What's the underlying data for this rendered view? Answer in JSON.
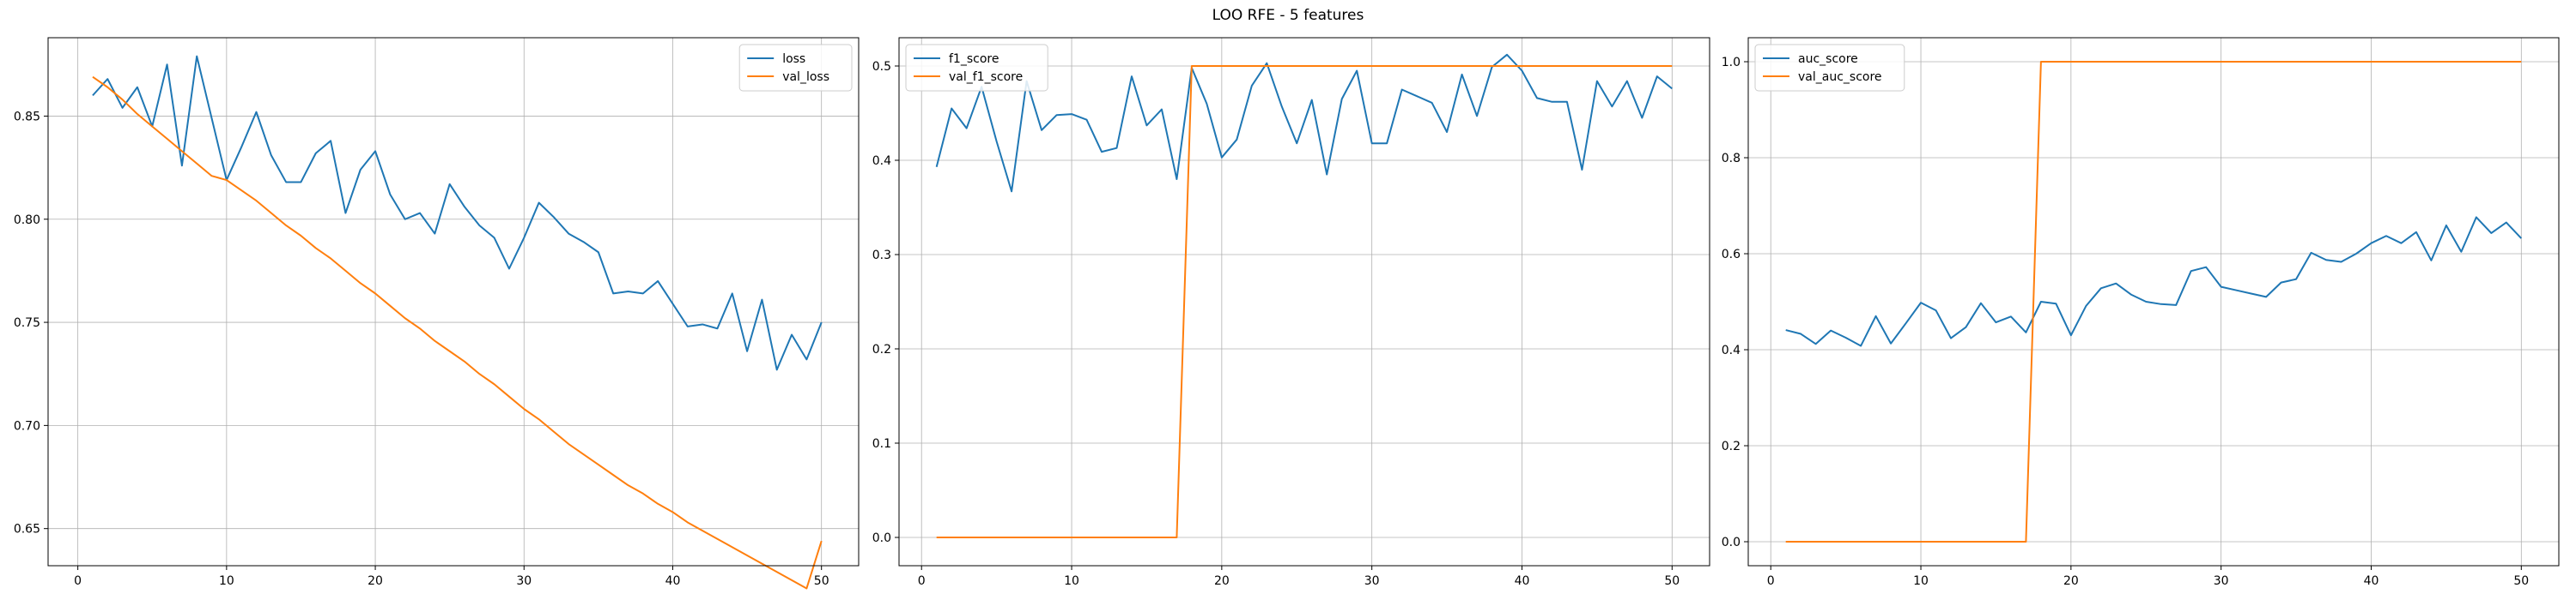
{
  "figure": {
    "title": "LOO RFE - 5 features"
  },
  "chart_data": [
    {
      "type": "line",
      "title": "",
      "xlabel": "",
      "ylabel": "",
      "xlim": [
        -2,
        52.5
      ],
      "ylim": [
        0.632,
        0.888
      ],
      "xticks": [
        0,
        10,
        20,
        30,
        40,
        50
      ],
      "yticks": [
        0.65,
        0.7,
        0.75,
        0.8,
        0.85
      ],
      "ytick_labels": [
        "0.65",
        "0.70",
        "0.75",
        "0.80",
        "0.85"
      ],
      "grid": true,
      "legend_position": "top-right",
      "series": [
        {
          "name": "loss",
          "color": "#1f77b4",
          "values": [
            0.86,
            0.868,
            0.854,
            0.864,
            0.845,
            0.875,
            0.826,
            0.879,
            0.849,
            0.819,
            0.835,
            0.852,
            0.831,
            0.818,
            0.818,
            0.832,
            0.838,
            0.803,
            0.824,
            0.833,
            0.812,
            0.8,
            0.803,
            0.793,
            0.817,
            0.806,
            0.797,
            0.791,
            0.776,
            0.791,
            0.808,
            0.801,
            0.793,
            0.789,
            0.784,
            0.764,
            0.765,
            0.764,
            0.77,
            0.759,
            0.748,
            0.749,
            0.747,
            0.764,
            0.736,
            0.761,
            0.727,
            0.744,
            0.732,
            0.75
          ]
        },
        {
          "name": "val_loss",
          "color": "#ff7f0e",
          "values": [
            0.869,
            0.864,
            0.858,
            0.851,
            0.845,
            0.839,
            0.833,
            0.827,
            0.821,
            0.819,
            0.814,
            0.809,
            0.803,
            0.797,
            0.792,
            0.786,
            0.781,
            0.775,
            0.769,
            0.764,
            0.758,
            0.752,
            0.747,
            0.741,
            0.736,
            0.731,
            0.725,
            0.72,
            0.714,
            0.708,
            0.703,
            0.697,
            0.691,
            0.686,
            0.681,
            0.676,
            0.671,
            0.667,
            0.662,
            0.658,
            0.653,
            0.649,
            0.645,
            0.641,
            0.637,
            0.633,
            0.629,
            0.625,
            0.621,
            0.644
          ]
        }
      ]
    },
    {
      "type": "line",
      "title": "",
      "xlabel": "",
      "ylabel": "",
      "xlim": [
        -1.5,
        52.5
      ],
      "ylim": [
        -0.03,
        0.53
      ],
      "xticks": [
        0,
        10,
        20,
        30,
        40,
        50
      ],
      "yticks": [
        0.0,
        0.1,
        0.2,
        0.3,
        0.4,
        0.5
      ],
      "ytick_labels": [
        "0.0",
        "0.1",
        "0.2",
        "0.3",
        "0.4",
        "0.5"
      ],
      "grid": true,
      "legend_position": "top-left",
      "series": [
        {
          "name": "f1_score",
          "color": "#1f77b4",
          "values": [
            0.393,
            0.455,
            0.434,
            0.478,
            0.42,
            0.367,
            0.484,
            0.432,
            0.448,
            0.449,
            0.443,
            0.409,
            0.413,
            0.489,
            0.437,
            0.454,
            0.38,
            0.498,
            0.46,
            0.403,
            0.422,
            0.479,
            0.503,
            0.457,
            0.418,
            0.464,
            0.385,
            0.465,
            0.495,
            0.418,
            0.418,
            0.475,
            0.468,
            0.461,
            0.43,
            0.491,
            0.447,
            0.499,
            0.512,
            0.495,
            0.466,
            0.462,
            0.462,
            0.39,
            0.484,
            0.457,
            0.484,
            0.445,
            0.489,
            0.476
          ]
        },
        {
          "name": "val_f1_score",
          "color": "#ff7f0e",
          "values": [
            0,
            0,
            0,
            0,
            0,
            0,
            0,
            0,
            0,
            0,
            0,
            0,
            0,
            0,
            0,
            0,
            0,
            0.5,
            0.5,
            0.5,
            0.5,
            0.5,
            0.5,
            0.5,
            0.5,
            0.5,
            0.5,
            0.5,
            0.5,
            0.5,
            0.5,
            0.5,
            0.5,
            0.5,
            0.5,
            0.5,
            0.5,
            0.5,
            0.5,
            0.5,
            0.5,
            0.5,
            0.5,
            0.5,
            0.5,
            0.5,
            0.5,
            0.5,
            0.5,
            0.5
          ]
        }
      ]
    },
    {
      "type": "line",
      "title": "",
      "xlabel": "",
      "ylabel": "",
      "xlim": [
        -1.5,
        52.5
      ],
      "ylim": [
        -0.05,
        1.05
      ],
      "xticks": [
        0,
        10,
        20,
        30,
        40,
        50
      ],
      "yticks": [
        0.0,
        0.2,
        0.4,
        0.6,
        0.8,
        1.0
      ],
      "ytick_labels": [
        "0.0",
        "0.2",
        "0.4",
        "0.6",
        "0.8",
        "1.0"
      ],
      "grid": true,
      "legend_position": "top-left",
      "series": [
        {
          "name": "auc_score",
          "color": "#1f77b4",
          "values": [
            0.441,
            0.433,
            0.412,
            0.44,
            0.425,
            0.408,
            0.47,
            0.413,
            0.455,
            0.498,
            0.482,
            0.424,
            0.447,
            0.497,
            0.457,
            0.469,
            0.436,
            0.5,
            0.496,
            0.43,
            0.491,
            0.528,
            0.538,
            0.515,
            0.5,
            0.495,
            0.493,
            0.564,
            0.572,
            0.531,
            0.524,
            0.517,
            0.51,
            0.54,
            0.547,
            0.602,
            0.587,
            0.583,
            0.6,
            0.622,
            0.637,
            0.622,
            0.645,
            0.586,
            0.659,
            0.604,
            0.676,
            0.643,
            0.665,
            0.632
          ]
        },
        {
          "name": "val_auc_score",
          "color": "#ff7f0e",
          "values": [
            0,
            0,
            0,
            0,
            0,
            0,
            0,
            0,
            0,
            0,
            0,
            0,
            0,
            0,
            0,
            0,
            0,
            1,
            1,
            1,
            1,
            1,
            1,
            1,
            1,
            1,
            1,
            1,
            1,
            1,
            1,
            1,
            1,
            1,
            1,
            1,
            1,
            1,
            1,
            1,
            1,
            1,
            1,
            1,
            1,
            1,
            1,
            1,
            1,
            1
          ]
        }
      ]
    }
  ]
}
